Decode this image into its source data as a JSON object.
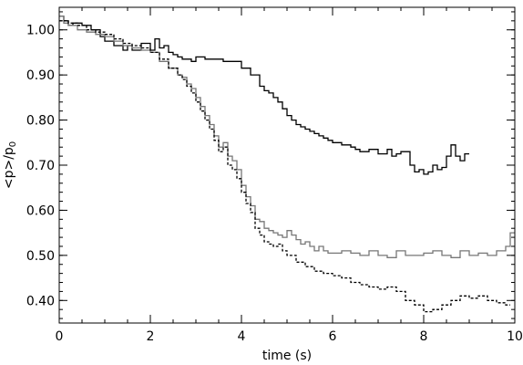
{
  "chart_data": {
    "type": "line",
    "step": true,
    "xlabel": "time (s)",
    "ylabel": "<p>/p",
    "ylabel_subscript": "0",
    "xlim": [
      0,
      10
    ],
    "ylim": [
      0.35,
      1.05
    ],
    "x_ticks": [
      {
        "value": 0,
        "label": "0"
      },
      {
        "value": 2,
        "label": "2"
      },
      {
        "value": 4,
        "label": "4"
      },
      {
        "value": 6,
        "label": "6"
      },
      {
        "value": 8,
        "label": "8"
      },
      {
        "value": 10,
        "label": "10"
      }
    ],
    "y_ticks": [
      {
        "value": 0.4,
        "label": "0.40"
      },
      {
        "value": 0.5,
        "label": "0.50"
      },
      {
        "value": 0.6,
        "label": "0.60"
      },
      {
        "value": 0.7,
        "label": "0.70"
      },
      {
        "value": 0.8,
        "label": "0.80"
      },
      {
        "value": 0.9,
        "label": "0.90"
      },
      {
        "value": 1.0,
        "label": "1.00"
      }
    ],
    "x_minor_step": 0.5,
    "y_minor_step": 0.02,
    "grid": false,
    "series": [
      {
        "color": "#000000",
        "style": "solid",
        "x": [
          0,
          0.1,
          0.2,
          0.3,
          0.5,
          0.7,
          0.9,
          1.0,
          1.2,
          1.4,
          1.5,
          1.6,
          1.8,
          2.0,
          2.1,
          2.2,
          2.3,
          2.4,
          2.5,
          2.6,
          2.7,
          2.8,
          2.9,
          3.0,
          3.2,
          3.4,
          3.6,
          3.8,
          4.0,
          4.2,
          4.4,
          4.5,
          4.6,
          4.7,
          4.8,
          4.9,
          5.0,
          5.1,
          5.2,
          5.3,
          5.4,
          5.5,
          5.6,
          5.7,
          5.8,
          5.9,
          6.0,
          6.2,
          6.4,
          6.5,
          6.6,
          6.8,
          7.0,
          7.2,
          7.3,
          7.4,
          7.5,
          7.6,
          7.7,
          7.8,
          7.9,
          8.0,
          8.1,
          8.2,
          8.3,
          8.4,
          8.5,
          8.6,
          8.7,
          8.8,
          8.9
        ],
        "y": [
          1.03,
          1.02,
          1.01,
          1.015,
          1.01,
          1.0,
          0.985,
          0.975,
          0.965,
          0.955,
          0.965,
          0.955,
          0.97,
          0.955,
          0.98,
          0.96,
          0.965,
          0.95,
          0.945,
          0.94,
          0.935,
          0.935,
          0.93,
          0.94,
          0.935,
          0.935,
          0.93,
          0.93,
          0.915,
          0.9,
          0.875,
          0.865,
          0.86,
          0.85,
          0.84,
          0.825,
          0.81,
          0.8,
          0.79,
          0.785,
          0.78,
          0.775,
          0.77,
          0.765,
          0.76,
          0.755,
          0.75,
          0.745,
          0.74,
          0.735,
          0.73,
          0.735,
          0.725,
          0.735,
          0.72,
          0.725,
          0.73,
          0.73,
          0.7,
          0.685,
          0.69,
          0.68,
          0.685,
          0.7,
          0.69,
          0.695,
          0.72,
          0.745,
          0.72,
          0.71,
          0.725
        ]
      },
      {
        "color": "#777777",
        "style": "solid",
        "x": [
          0,
          0.1,
          0.2,
          0.4,
          0.6,
          0.8,
          1.0,
          1.2,
          1.4,
          1.6,
          1.8,
          2.0,
          2.2,
          2.4,
          2.6,
          2.7,
          2.8,
          2.9,
          3.0,
          3.1,
          3.2,
          3.3,
          3.4,
          3.5,
          3.6,
          3.7,
          3.8,
          3.9,
          4.0,
          4.1,
          4.2,
          4.3,
          4.4,
          4.5,
          4.6,
          4.7,
          4.8,
          4.9,
          5.0,
          5.1,
          5.2,
          5.3,
          5.4,
          5.5,
          5.6,
          5.7,
          5.8,
          5.9,
          6.0,
          6.2,
          6.4,
          6.6,
          6.8,
          7.0,
          7.2,
          7.4,
          7.6,
          7.8,
          8.0,
          8.2,
          8.4,
          8.6,
          8.8,
          9.0,
          9.2,
          9.4,
          9.6,
          9.8,
          9.9
        ],
        "y": [
          1.03,
          1.015,
          1.01,
          1.0,
          0.995,
          0.99,
          0.985,
          0.975,
          0.965,
          0.96,
          0.955,
          0.95,
          0.93,
          0.915,
          0.9,
          0.895,
          0.88,
          0.87,
          0.85,
          0.83,
          0.81,
          0.79,
          0.765,
          0.74,
          0.75,
          0.72,
          0.71,
          0.69,
          0.655,
          0.63,
          0.61,
          0.58,
          0.575,
          0.56,
          0.555,
          0.55,
          0.545,
          0.54,
          0.555,
          0.545,
          0.535,
          0.525,
          0.53,
          0.52,
          0.51,
          0.52,
          0.51,
          0.505,
          0.505,
          0.51,
          0.505,
          0.5,
          0.51,
          0.5,
          0.495,
          0.51,
          0.5,
          0.5,
          0.505,
          0.51,
          0.5,
          0.495,
          0.51,
          0.5,
          0.505,
          0.5,
          0.51,
          0.52,
          0.55
        ]
      },
      {
        "color": "#000000",
        "style": "dashed",
        "x": [
          0,
          0.2,
          0.4,
          0.6,
          0.8,
          1.0,
          1.2,
          1.4,
          1.6,
          1.8,
          2.0,
          2.2,
          2.4,
          2.6,
          2.7,
          2.8,
          2.9,
          3.0,
          3.1,
          3.2,
          3.3,
          3.4,
          3.5,
          3.6,
          3.7,
          3.8,
          3.9,
          4.0,
          4.1,
          4.2,
          4.3,
          4.4,
          4.5,
          4.6,
          4.7,
          4.8,
          4.9,
          5.0,
          5.2,
          5.4,
          5.6,
          5.8,
          6.0,
          6.2,
          6.4,
          6.6,
          6.8,
          7.0,
          7.2,
          7.4,
          7.6,
          7.8,
          8.0,
          8.2,
          8.4,
          8.6,
          8.8,
          9.0,
          9.2,
          9.4,
          9.6,
          9.8
        ],
        "y": [
          1.02,
          1.015,
          1.01,
          1.0,
          0.995,
          0.99,
          0.98,
          0.97,
          0.965,
          0.96,
          0.95,
          0.935,
          0.915,
          0.9,
          0.89,
          0.875,
          0.86,
          0.84,
          0.82,
          0.8,
          0.78,
          0.755,
          0.73,
          0.74,
          0.7,
          0.69,
          0.67,
          0.64,
          0.615,
          0.595,
          0.56,
          0.545,
          0.53,
          0.525,
          0.52,
          0.525,
          0.51,
          0.5,
          0.485,
          0.475,
          0.465,
          0.46,
          0.455,
          0.45,
          0.44,
          0.435,
          0.43,
          0.425,
          0.43,
          0.42,
          0.4,
          0.39,
          0.375,
          0.38,
          0.39,
          0.4,
          0.41,
          0.405,
          0.41,
          0.4,
          0.395,
          0.39
        ]
      }
    ]
  }
}
